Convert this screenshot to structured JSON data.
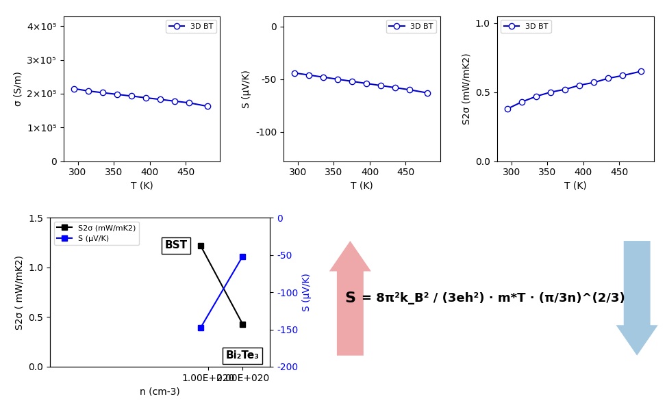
{
  "chart_data": [
    {
      "type": "line",
      "x": [
        295,
        315,
        335,
        355,
        375,
        395,
        415,
        435,
        455,
        480
      ],
      "series": [
        {
          "name": "3D BT",
          "color": "#0000cd",
          "marker": "o",
          "values": [
            215000,
            208000,
            203000,
            198000,
            193000,
            188000,
            183000,
            178000,
            173000,
            163000
          ]
        }
      ],
      "x_label": "T (K)",
      "y_label": "σ (S/m)",
      "xlim": [
        280,
        498
      ],
      "xticks": [
        300,
        350,
        400,
        450
      ],
      "ylim": [
        0,
        430000
      ],
      "yticks": [
        0,
        {
          "value": 100000,
          "label": "1×10⁵"
        },
        {
          "value": 200000,
          "label": "2×10⁵"
        },
        {
          "value": 300000,
          "label": "3×10⁵"
        },
        {
          "value": 400000,
          "label": "4×10⁵"
        }
      ],
      "legend": "upper right",
      "grid": false
    },
    {
      "type": "line",
      "x": [
        295,
        315,
        335,
        355,
        375,
        395,
        415,
        435,
        455,
        480
      ],
      "series": [
        {
          "name": "3D BT",
          "color": "#0000cd",
          "marker": "o",
          "values": [
            -44,
            -46,
            -48,
            -50,
            -52,
            -54,
            -56,
            -58,
            -60,
            -63
          ]
        }
      ],
      "x_label": "T (K)",
      "y_label": "S (μV/K)",
      "xlim": [
        280,
        498
      ],
      "xticks": [
        300,
        350,
        400,
        450
      ],
      "ylim": [
        -128,
        10
      ],
      "yticks": [
        0,
        -50,
        -100
      ],
      "legend": "upper right",
      "grid": false
    },
    {
      "type": "line",
      "x": [
        295,
        315,
        335,
        355,
        375,
        395,
        415,
        435,
        455,
        480
      ],
      "series": [
        {
          "name": "3D BT",
          "color": "#0000cd",
          "marker": "o",
          "values": [
            0.38,
            0.43,
            0.47,
            0.5,
            0.52,
            0.55,
            0.57,
            0.6,
            0.62,
            0.65
          ]
        }
      ],
      "x_label": "T (K)",
      "y_label": "S2σ (mW/mK2)",
      "xlim": [
        280,
        498
      ],
      "xticks": [
        300,
        350,
        400,
        450
      ],
      "ylim": [
        0.0,
        1.05
      ],
      "yticks": [
        0.0,
        0.5,
        1.0
      ],
      "legend": "upper left",
      "grid": false
    },
    {
      "type": "line",
      "x": [
        8.5e+19,
        2e+20
      ],
      "log": "x",
      "series": [
        {
          "name": "S2σ (mW/mK2)",
          "color": "black",
          "marker": "s",
          "values": [
            1.22,
            0.43
          ]
        },
        {
          "name": "S (μV/K)",
          "color": "blue",
          "marker": "s",
          "axis": "y2",
          "values": [
            -148,
            -52
          ]
        }
      ],
      "x_label": "n (cm-3)",
      "y_label": "S2σ ( mW/mK2)",
      "y2_label": "S (μV/K)",
      "xlim": [
        4e+18,
        3.5e+20
      ],
      "xticks": [
        {
          "value": 1e+20,
          "label": "1.00E+020"
        },
        {
          "value": 2e+20,
          "label": "2.00E+020"
        }
      ],
      "ylim": [
        0.0,
        1.5
      ],
      "yticks": [
        0.0,
        0.5,
        1.0,
        1.5
      ],
      "y2lim": [
        -200,
        0
      ],
      "y2ticks": [
        -200,
        -150,
        -100,
        -50,
        0
      ],
      "annotations": [
        {
          "text": "BST",
          "x": 8.5e+19,
          "y": 1.22
        },
        {
          "text": "Bi₂Te₃",
          "x": 2e+20,
          "y": 0.43
        }
      ],
      "legend": "upper left",
      "grid": false
    },
    {
      "type": "text",
      "annotations": [
        "S",
        "= 8π²k_B² / (3eh²) · m*T · (π/3n)^(2/3)"
      ]
    }
  ]
}
